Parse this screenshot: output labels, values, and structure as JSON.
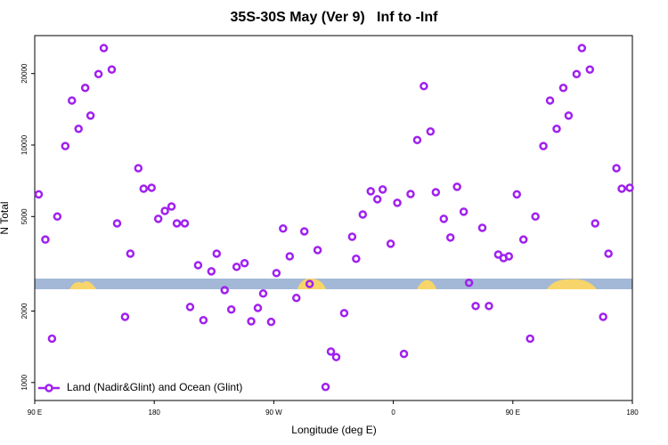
{
  "chart_data": {
    "type": "scatter",
    "title": "35S-30S May (Ver 9)   Inf to -Inf",
    "x_label": "Longitude (deg E)",
    "y_label": "N Total",
    "log_y": true,
    "legend": "bottom-left",
    "xlim": [
      90,
      540
    ],
    "ylim": [
      840,
      28900
    ],
    "xticks": [
      {
        "value": 90,
        "label": "90 E"
      },
      {
        "value": 180,
        "label": "180"
      },
      {
        "value": 270,
        "label": "90 W"
      },
      {
        "value": 360,
        "label": "0"
      },
      {
        "value": 450,
        "label": "90 E"
      },
      {
        "value": 540,
        "label": "180"
      }
    ],
    "yticks": [
      1000,
      2000,
      5000,
      10000,
      20000
    ],
    "series": [
      {
        "name": "Land (Nadir&Glint) and Ocean (Glint)",
        "color": "#a020f0",
        "x": [
          93,
          98,
          103,
          107,
          113,
          118,
          123,
          128,
          132,
          138,
          142,
          148,
          152,
          158,
          162,
          168,
          172,
          178,
          183,
          188,
          193,
          197,
          203,
          207,
          213,
          217,
          223,
          227,
          233,
          238,
          242,
          248,
          253,
          258,
          262,
          268,
          272,
          277,
          282,
          287,
          293,
          297,
          303,
          309,
          313,
          317,
          323,
          329,
          332,
          337,
          343,
          348,
          352,
          358,
          363,
          368,
          373,
          378,
          383,
          388,
          392,
          398,
          403,
          408,
          413,
          417,
          422,
          427,
          432,
          439,
          443,
          447,
          453,
          458,
          463,
          467,
          473,
          478,
          483,
          488,
          492,
          498,
          502,
          508,
          512,
          518,
          522,
          528,
          532,
          538
        ],
        "values": [
          6200,
          4000,
          1530,
          5000,
          9900,
          15400,
          11700,
          17400,
          13300,
          19900,
          25600,
          20800,
          4680,
          1890,
          3490,
          7990,
          6550,
          6610,
          4890,
          5280,
          5510,
          4680,
          4680,
          2080,
          3120,
          1830,
          2940,
          3490,
          2450,
          2030,
          3070,
          3180,
          1810,
          2060,
          2370,
          1800,
          2890,
          4450,
          3400,
          2270,
          4330,
          2600,
          3610,
          958,
          1350,
          1280,
          1960,
          4110,
          3320,
          5100,
          6390,
          5910,
          6500,
          3840,
          5710,
          1320,
          6220,
          10500,
          17700,
          11400,
          6330,
          4890,
          4080,
          6670,
          5240,
          2630,
          2100,
          4480,
          2100,
          3460,
          3340,
          3400,
          6200,
          4000,
          1530,
          5000,
          9900,
          15400,
          11700,
          17400,
          13300,
          19900,
          25600,
          20800,
          4680,
          1890,
          3490,
          7990,
          6550,
          6610
        ]
      }
    ]
  }
}
